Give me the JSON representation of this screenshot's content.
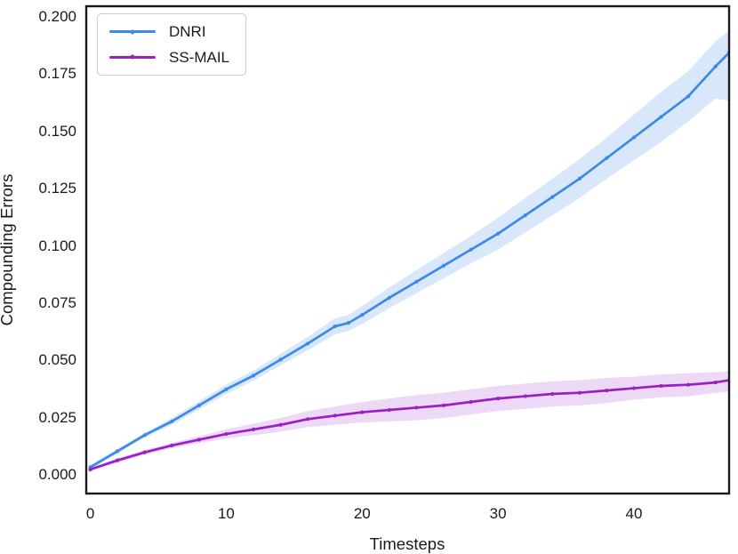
{
  "axes": {
    "xlabel": "Timesteps",
    "ylabel": "Compounding Errors"
  },
  "style": {
    "axis_color": "#1a1a1a",
    "text_color": "#1a1a1a",
    "background": "#ffffff",
    "legend_border": "#cccccc",
    "spine_width": 2.4,
    "line_width": 2.7
  },
  "chart_data": {
    "type": "line",
    "title": "",
    "xlabel": "Timesteps",
    "ylabel": "Compounding Errors",
    "xlim": [
      -0.3,
      47
    ],
    "ylim": [
      -0.0085,
      0.2043
    ],
    "x_ticks": [
      0,
      10,
      20,
      30,
      40
    ],
    "y_ticks": [
      0.0,
      0.025,
      0.05,
      0.075,
      0.1,
      0.125,
      0.15,
      0.175,
      0.2
    ],
    "y_tick_decimals": 3,
    "grid": false,
    "legend_position": "upper left",
    "series": [
      {
        "name": "DNRI",
        "color": "#3d8ae6",
        "band_color": "rgba(92,158,235,0.24)",
        "x": [
          0,
          2,
          4,
          6,
          8,
          10,
          12,
          14,
          16,
          18,
          19,
          20,
          22,
          24,
          26,
          28,
          30,
          32,
          34,
          36,
          38,
          40,
          42,
          44,
          46,
          47
        ],
        "mean": [
          0.003,
          0.01,
          0.017,
          0.023,
          0.03,
          0.037,
          0.043,
          0.05,
          0.057,
          0.0645,
          0.066,
          0.0695,
          0.077,
          0.084,
          0.091,
          0.098,
          0.105,
          0.113,
          0.121,
          0.129,
          0.138,
          0.147,
          0.156,
          0.165,
          0.178,
          0.184
        ],
        "upper": [
          0.004,
          0.011,
          0.018,
          0.0245,
          0.0318,
          0.039,
          0.0452,
          0.0525,
          0.06,
          0.068,
          0.0695,
          0.0735,
          0.0815,
          0.089,
          0.0965,
          0.104,
          0.112,
          0.1205,
          0.129,
          0.1375,
          0.147,
          0.157,
          0.167,
          0.176,
          0.189,
          0.1935
        ],
        "lower": [
          0.002,
          0.009,
          0.016,
          0.0215,
          0.0282,
          0.035,
          0.0408,
          0.0475,
          0.054,
          0.061,
          0.0625,
          0.0655,
          0.0725,
          0.079,
          0.0855,
          0.092,
          0.098,
          0.1055,
          0.113,
          0.1205,
          0.129,
          0.137,
          0.145,
          0.154,
          0.164,
          0.163
        ]
      },
      {
        "name": "SS-MAIL",
        "color": "#9a1fc4",
        "band_color": "rgba(164,61,207,0.20)",
        "x": [
          0,
          2,
          4,
          6,
          8,
          10,
          12,
          14,
          16,
          18,
          20,
          22,
          24,
          26,
          28,
          30,
          32,
          34,
          36,
          38,
          40,
          42,
          44,
          46,
          47
        ],
        "mean": [
          0.002,
          0.006,
          0.0095,
          0.0125,
          0.015,
          0.0175,
          0.0195,
          0.0215,
          0.024,
          0.0255,
          0.027,
          0.028,
          0.029,
          0.03,
          0.0315,
          0.033,
          0.034,
          0.035,
          0.0355,
          0.0365,
          0.0375,
          0.0385,
          0.039,
          0.04,
          0.041
        ],
        "upper": [
          0.0025,
          0.007,
          0.0105,
          0.0137,
          0.0165,
          0.0195,
          0.022,
          0.0245,
          0.0275,
          0.0295,
          0.0315,
          0.033,
          0.0345,
          0.0355,
          0.037,
          0.0385,
          0.0395,
          0.0405,
          0.041,
          0.042,
          0.0425,
          0.0435,
          0.044,
          0.0445,
          0.045
        ],
        "lower": [
          0.0015,
          0.005,
          0.0085,
          0.0113,
          0.0135,
          0.0155,
          0.017,
          0.0185,
          0.0205,
          0.0215,
          0.0225,
          0.023,
          0.0235,
          0.0245,
          0.026,
          0.0275,
          0.0285,
          0.0295,
          0.03,
          0.031,
          0.0325,
          0.0335,
          0.034,
          0.0355,
          0.036
        ]
      }
    ]
  }
}
